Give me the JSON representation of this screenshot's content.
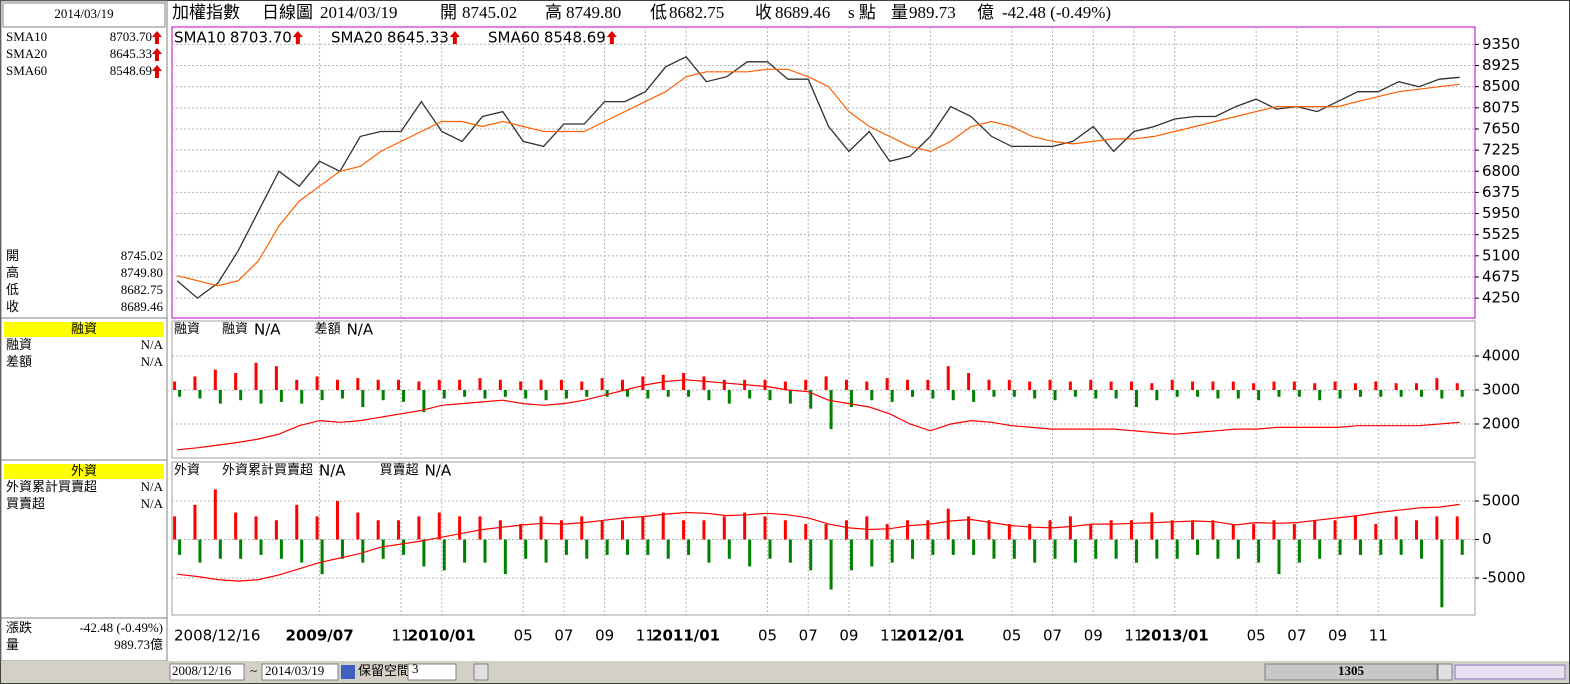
{
  "header": {
    "date": "2014/03/19",
    "index_name": "加權指數",
    "chart_kind": "日線圖",
    "open_label": "開",
    "open": "8745.02",
    "high_label": "高",
    "high": "8749.80",
    "low_label": "低",
    "low": "8682.75",
    "close_label": "收",
    "close": "8689.46",
    "unit": "s 點",
    "volume_label": "量",
    "volume": "989.73",
    "volume_unit": "億",
    "change": "-42.48 (-0.49%)",
    "change_label": "漲跌"
  },
  "toolbar": {
    "start": "2008/12/16",
    "tilde": "~",
    "reserve": "保留空間",
    "reserve_value": "3",
    "position": "1305"
  },
  "chart_data": [
    {
      "type": "line",
      "categories": [
        "2008/12/16",
        null,
        null,
        null,
        null,
        null,
        null,
        "2009/07",
        null,
        null,
        null,
        "11",
        null,
        "2010/01",
        null,
        null,
        null,
        "05",
        null,
        "07",
        null,
        "09",
        null,
        "11",
        null,
        "2011/01",
        null,
        null,
        null,
        "05",
        null,
        "07",
        null,
        "09",
        null,
        "11",
        null,
        "2012/01",
        null,
        null,
        null,
        "05",
        null,
        "07",
        null,
        "09",
        null,
        "11",
        null,
        "2013/01",
        null,
        null,
        null,
        "05",
        null,
        "07",
        null,
        "09",
        null,
        "11",
        null,
        null,
        null,
        null
      ],
      "legend": [
        {
          "name": "SMA10",
          "value": "8703.70",
          "color": "#00b4c8"
        },
        {
          "name": "SMA20",
          "value": "8645.33",
          "color": "#e000a0"
        },
        {
          "name": "SMA60",
          "value": "8548.69",
          "color": "#ff6000"
        }
      ],
      "series": [
        {
          "color": "#303030",
          "values": [
            4600,
            4250,
            4550,
            5200,
            6000,
            6800,
            6500,
            7000,
            6800,
            7500,
            7600,
            7600,
            8200,
            7600,
            7400,
            7900,
            8000,
            7400,
            7300,
            7750,
            7750,
            8200,
            8200,
            8400,
            8900,
            9100,
            8600,
            8700,
            9000,
            9000,
            8650,
            8650,
            7700,
            7200,
            7600,
            7000,
            7100,
            7500,
            8100,
            7900,
            7500,
            7300,
            7300,
            7300,
            7400,
            7700,
            7200,
            7600,
            7700,
            7850,
            7900,
            7900,
            8100,
            8250,
            8050,
            8100,
            8000,
            8200,
            8400,
            8400,
            8600,
            8500,
            8650,
            8689.46
          ]
        },
        {
          "color": "#ff6000",
          "values": [
            4700,
            4600,
            4500,
            4600,
            5000,
            5700,
            6200,
            6500,
            6800,
            6900,
            7200,
            7400,
            7600,
            7800,
            7800,
            7700,
            7800,
            7700,
            7600,
            7600,
            7600,
            7800,
            8000,
            8200,
            8400,
            8700,
            8800,
            8800,
            8800,
            8850,
            8850,
            8700,
            8500,
            8000,
            7700,
            7500,
            7300,
            7200,
            7400,
            7700,
            7800,
            7700,
            7500,
            7400,
            7350,
            7400,
            7450,
            7450,
            7500,
            7600,
            7700,
            7800,
            7900,
            8000,
            8100,
            8100,
            8100,
            8100,
            8200,
            8300,
            8400,
            8450,
            8500,
            8548.69
          ]
        }
      ],
      "ylim": [
        3850,
        9700
      ],
      "yticks": [
        4250,
        4675,
        5100,
        5525,
        5950,
        6375,
        6800,
        7225,
        7650,
        8075,
        8500,
        8925,
        9350
      ],
      "grid": true,
      "frame_color": "#c000c0"
    },
    {
      "type": "bar",
      "title": "融資",
      "legend": [
        {
          "name": "融資",
          "value": "N/A",
          "color": "#ff0000"
        },
        {
          "name": "差額",
          "value": "N/A",
          "color": "#0070c0"
        }
      ],
      "line": {
        "color": "#ff0000",
        "values": [
          1240,
          1300,
          1380,
          1460,
          1560,
          1700,
          1950,
          2100,
          2050,
          2100,
          2200,
          2300,
          2400,
          2550,
          2600,
          2650,
          2700,
          2600,
          2550,
          2600,
          2700,
          2850,
          3000,
          3150,
          3250,
          3300,
          3250,
          3200,
          3150,
          3100,
          3000,
          2950,
          2700,
          2600,
          2500,
          2300,
          2000,
          1800,
          2000,
          2100,
          2050,
          1950,
          1900,
          1850,
          1850,
          1850,
          1850,
          1800,
          1750,
          1700,
          1750,
          1800,
          1850,
          1850,
          1900,
          1900,
          1900,
          1900,
          1950,
          1950,
          1950,
          1950,
          2000,
          2050
        ]
      },
      "up": {
        "color": "#ff0000",
        "values": [
          3250,
          3400,
          3600,
          3500,
          3800,
          3700,
          3300,
          3400,
          3300,
          3350,
          3300,
          3300,
          3250,
          3300,
          3300,
          3350,
          3300,
          3250,
          3300,
          3300,
          3250,
          3350,
          3300,
          3400,
          3450,
          3500,
          3400,
          3300,
          3300,
          3300,
          3250,
          3300,
          3400,
          3300,
          3250,
          3350,
          3300,
          3300,
          3700,
          3500,
          3300,
          3300,
          3250,
          3300,
          3250,
          3300,
          3250,
          3250,
          3200,
          3300,
          3250,
          3250,
          3250,
          3200,
          3250,
          3250,
          3200,
          3250,
          3200,
          3250,
          3200,
          3200,
          3350,
          3200
        ]
      },
      "down": {
        "color": "#008000",
        "values": [
          2800,
          2750,
          2600,
          2700,
          2600,
          2650,
          2600,
          2700,
          2750,
          2500,
          2700,
          2650,
          2350,
          2750,
          2800,
          2750,
          2800,
          2750,
          2700,
          2750,
          2800,
          2800,
          2800,
          2750,
          2800,
          2800,
          2700,
          2600,
          2750,
          2700,
          2600,
          2450,
          1850,
          2500,
          2700,
          2650,
          2800,
          2750,
          2700,
          2650,
          2800,
          2800,
          2750,
          2700,
          2800,
          2750,
          2750,
          2500,
          2700,
          2800,
          2800,
          2750,
          2750,
          2700,
          2800,
          2800,
          2700,
          2750,
          2800,
          2800,
          2800,
          2800,
          2750,
          2800
        ]
      },
      "ylim": [
        1000,
        5030
      ],
      "yticks": [
        2000,
        3000,
        4000
      ],
      "grid": true,
      "frame_color": "#a0a0a0"
    },
    {
      "type": "bar",
      "title": "外資",
      "legend": [
        {
          "name": "外資累計買賣超",
          "value": "N/A",
          "color": "#ff0000"
        },
        {
          "name": "買賣超",
          "value": "N/A",
          "color": "#0070c0"
        }
      ],
      "line": {
        "color": "#ff0000",
        "values": [
          -4500,
          -4800,
          -5200,
          -5400,
          -5200,
          -4600,
          -3800,
          -3000,
          -2400,
          -1800,
          -1000,
          -600,
          -200,
          300,
          800,
          1300,
          1600,
          1900,
          2100,
          2000,
          2200,
          2500,
          2800,
          3000,
          3300,
          3500,
          3400,
          3100,
          3200,
          3400,
          3200,
          2800,
          2000,
          1500,
          1300,
          1400,
          1800,
          2000,
          2400,
          2600,
          2200,
          1800,
          1600,
          1500,
          1700,
          2000,
          2000,
          2100,
          2200,
          2300,
          2400,
          2300,
          1900,
          2200,
          2100,
          2200,
          2500,
          2800,
          3100,
          3500,
          3800,
          4100,
          4200,
          4550
        ]
      },
      "up": {
        "color": "#ff0000",
        "values": [
          3000,
          4500,
          6500,
          3500,
          3000,
          2500,
          4500,
          3000,
          5000,
          3500,
          2500,
          2500,
          3000,
          3500,
          3000,
          3000,
          2500,
          2000,
          3000,
          2500,
          3000,
          2500,
          2500,
          3000,
          3500,
          2500,
          2500,
          3000,
          3500,
          3000,
          2500,
          2000,
          2000,
          2500,
          3000,
          2000,
          2500,
          2500,
          4000,
          3000,
          2500,
          2000,
          2000,
          2500,
          3000,
          2000,
          2500,
          2500,
          3500,
          2500,
          2500,
          2500,
          2000,
          2000,
          2500,
          2000,
          2500,
          2500,
          3000,
          2000,
          3000,
          2500,
          3000,
          3000
        ]
      },
      "down": {
        "color": "#008000",
        "values": [
          -2000,
          -3000,
          -2500,
          -2500,
          -2000,
          -2500,
          -3000,
          -4500,
          -2500,
          -3000,
          -2500,
          -2000,
          -3500,
          -4000,
          -3000,
          -3000,
          -4500,
          -2500,
          -3000,
          -2000,
          -2500,
          -2000,
          -2000,
          -2000,
          -2500,
          -2000,
          -3000,
          -2500,
          -3500,
          -2500,
          -3000,
          -4000,
          -6500,
          -4000,
          -3500,
          -3000,
          -2500,
          -2000,
          -2000,
          -2000,
          -2500,
          -2500,
          -3000,
          -2500,
          -3000,
          -2500,
          -2500,
          -3000,
          -2500,
          -2500,
          -2000,
          -2500,
          -2500,
          -3000,
          -4500,
          -3000,
          -2500,
          -2000,
          -2000,
          -2000,
          -2000,
          -2500,
          -8800,
          -2000
        ]
      },
      "ylim": [
        -9800,
        10060
      ],
      "yticks": [
        -5000,
        0,
        5000
      ],
      "grid": true,
      "frame_color": "#a0a0a0"
    }
  ]
}
